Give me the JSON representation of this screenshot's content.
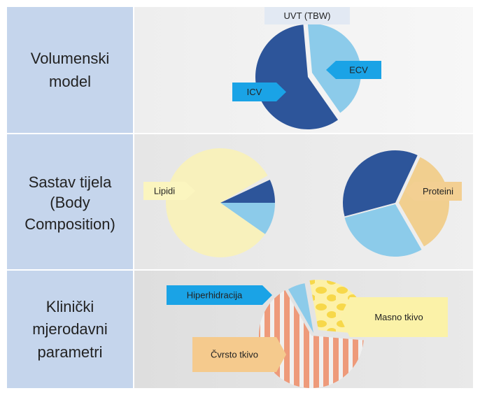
{
  "rows": [
    {
      "label": [
        "Volumenski",
        "model"
      ]
    },
    {
      "label": [
        "Sastav tijela",
        "(Body",
        "Composition)"
      ]
    },
    {
      "label": [
        "Klinički",
        "mjerodavni",
        "parametri"
      ]
    }
  ],
  "tags": {
    "uvt": "UVT (TBW)",
    "ecv": "ECV",
    "icv": "ICV",
    "lipidi": "Lipidi",
    "proteini": "Proteini",
    "hiper": "Hiperhidracija",
    "masno": "Masno tkivo",
    "cvrsto": "Čvrsto tkivo"
  }
}
